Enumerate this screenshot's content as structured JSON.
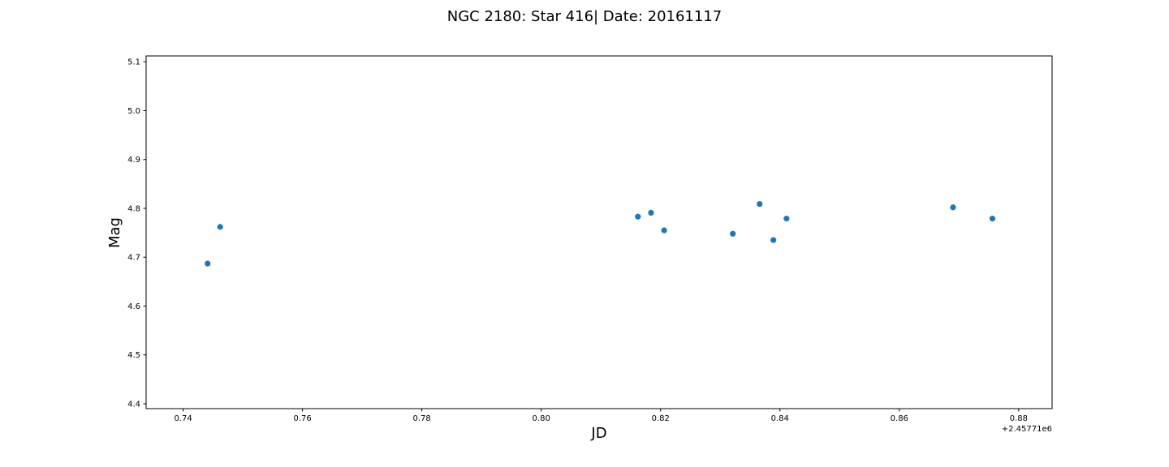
{
  "chart_data": {
    "type": "scatter",
    "title": "NGC 2180: Star 416| Date: 20161117",
    "xlabel": "JD",
    "ylabel": "Mag",
    "x_offset_label": "+2.45771e6",
    "xlim": [
      0.7338,
      0.8856
    ],
    "ylim": [
      4.39,
      5.112
    ],
    "x_ticks": [
      0.74,
      0.76,
      0.78,
      0.8,
      0.82,
      0.84,
      0.86,
      0.88
    ],
    "x_tick_labels": [
      "0.74",
      "0.76",
      "0.78",
      "0.80",
      "0.82",
      "0.84",
      "0.86",
      "0.88"
    ],
    "y_ticks": [
      4.4,
      4.5,
      4.6,
      4.7,
      4.8,
      4.9,
      5.0,
      5.1
    ],
    "y_tick_labels": [
      "4.4",
      "4.5",
      "4.6",
      "4.7",
      "4.8",
      "4.9",
      "5.0",
      "5.1"
    ],
    "grid": false,
    "marker_color": "#1f77b4",
    "points": [
      {
        "x": 0.7441,
        "y": 4.687
      },
      {
        "x": 0.7462,
        "y": 4.762
      },
      {
        "x": 0.8162,
        "y": 4.783
      },
      {
        "x": 0.8184,
        "y": 4.791
      },
      {
        "x": 0.8206,
        "y": 4.755
      },
      {
        "x": 0.8321,
        "y": 4.748
      },
      {
        "x": 0.8366,
        "y": 4.809
      },
      {
        "x": 0.8389,
        "y": 4.735
      },
      {
        "x": 0.8411,
        "y": 4.779
      },
      {
        "x": 0.869,
        "y": 4.802
      },
      {
        "x": 0.8756,
        "y": 4.779
      }
    ]
  }
}
